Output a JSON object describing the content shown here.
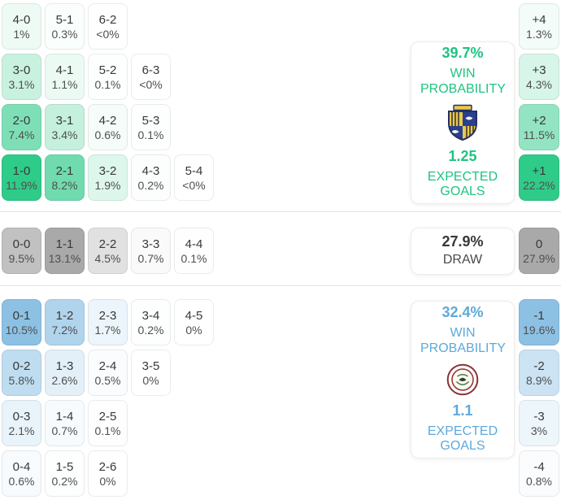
{
  "colors": {
    "home_accent": "#2fcb89",
    "home_text": "#1ec481",
    "draw_accent": "#a9a9a9",
    "draw_text": "#3c3c3c",
    "away_accent": "#8cc1e4",
    "away_text": "#5ea9db"
  },
  "chart_data": {
    "type": "heatmap",
    "title": "Correct score probability matrix with win/draw probabilities, goal-difference distribution and expected goals",
    "groups": [
      {
        "name": "home-win",
        "cell_color": "#2fcb89",
        "score_rows": [
          [
            {
              "score": "4-0",
              "pct": "1%",
              "value": 1.0
            },
            {
              "score": "5-1",
              "pct": "0.3%",
              "value": 0.3
            },
            {
              "score": "6-2",
              "pct": "<0%",
              "value": 0.02
            }
          ],
          [
            {
              "score": "3-0",
              "pct": "3.1%",
              "value": 3.1
            },
            {
              "score": "4-1",
              "pct": "1.1%",
              "value": 1.1
            },
            {
              "score": "5-2",
              "pct": "0.1%",
              "value": 0.1
            },
            {
              "score": "6-3",
              "pct": "<0%",
              "value": 0.02
            }
          ],
          [
            {
              "score": "2-0",
              "pct": "7.4%",
              "value": 7.4
            },
            {
              "score": "3-1",
              "pct": "3.4%",
              "value": 3.4
            },
            {
              "score": "4-2",
              "pct": "0.6%",
              "value": 0.6
            },
            {
              "score": "5-3",
              "pct": "0.1%",
              "value": 0.1
            }
          ],
          [
            {
              "score": "1-0",
              "pct": "11.9%",
              "value": 11.9
            },
            {
              "score": "2-1",
              "pct": "8.2%",
              "value": 8.2
            },
            {
              "score": "3-2",
              "pct": "1.9%",
              "value": 1.9
            },
            {
              "score": "4-3",
              "pct": "0.2%",
              "value": 0.2
            },
            {
              "score": "5-4",
              "pct": "<0%",
              "value": 0.02
            }
          ]
        ],
        "goal_diff": [
          {
            "label": "+4",
            "pct": "1.3%",
            "value": 1.3
          },
          {
            "label": "+3",
            "pct": "4.3%",
            "value": 4.3
          },
          {
            "label": "+2",
            "pct": "11.5%",
            "value": 11.5
          },
          {
            "label": "+1",
            "pct": "22.2%",
            "value": 22.2
          }
        ],
        "summary": {
          "probability": "39.7%",
          "probability_label": "WIN PROBABILITY",
          "expected": "1.25",
          "expected_label": "EXPECTED GOALS"
        }
      },
      {
        "name": "draw",
        "cell_color": "#a9a9a9",
        "score_rows": [
          [
            {
              "score": "0-0",
              "pct": "9.5%",
              "value": 9.5
            },
            {
              "score": "1-1",
              "pct": "13.1%",
              "value": 13.1
            },
            {
              "score": "2-2",
              "pct": "4.5%",
              "value": 4.5
            },
            {
              "score": "3-3",
              "pct": "0.7%",
              "value": 0.7
            },
            {
              "score": "4-4",
              "pct": "0.1%",
              "value": 0.1
            }
          ]
        ],
        "goal_diff": [
          {
            "label": "0",
            "pct": "27.9%",
            "value": 27.9
          }
        ],
        "summary": {
          "probability": "27.9%",
          "probability_label": "DRAW"
        }
      },
      {
        "name": "away-win",
        "cell_color": "#8cc1e4",
        "score_rows": [
          [
            {
              "score": "0-1",
              "pct": "10.5%",
              "value": 10.5
            },
            {
              "score": "1-2",
              "pct": "7.2%",
              "value": 7.2
            },
            {
              "score": "2-3",
              "pct": "1.7%",
              "value": 1.7
            },
            {
              "score": "3-4",
              "pct": "0.2%",
              "value": 0.2
            },
            {
              "score": "4-5",
              "pct": "0%",
              "value": 0
            }
          ],
          [
            {
              "score": "0-2",
              "pct": "5.8%",
              "value": 5.8
            },
            {
              "score": "1-3",
              "pct": "2.6%",
              "value": 2.6
            },
            {
              "score": "2-4",
              "pct": "0.5%",
              "value": 0.5
            },
            {
              "score": "3-5",
              "pct": "0%",
              "value": 0
            }
          ],
          [
            {
              "score": "0-3",
              "pct": "2.1%",
              "value": 2.1
            },
            {
              "score": "1-4",
              "pct": "0.7%",
              "value": 0.7
            },
            {
              "score": "2-5",
              "pct": "0.1%",
              "value": 0.1
            }
          ],
          [
            {
              "score": "0-4",
              "pct": "0.6%",
              "value": 0.6
            },
            {
              "score": "1-5",
              "pct": "0.2%",
              "value": 0.2
            },
            {
              "score": "2-6",
              "pct": "0%",
              "value": 0
            }
          ]
        ],
        "goal_diff": [
          {
            "label": "-1",
            "pct": "19.6%",
            "value": 19.6
          },
          {
            "label": "-2",
            "pct": "8.9%",
            "value": 8.9
          },
          {
            "label": "-3",
            "pct": "3%",
            "value": 3
          },
          {
            "label": "-4",
            "pct": "0.8%",
            "value": 0.8
          }
        ],
        "summary": {
          "probability": "32.4%",
          "probability_label": "WIN PROBABILITY",
          "expected": "1.1",
          "expected_label": "EXPECTED GOALS"
        }
      }
    ]
  }
}
